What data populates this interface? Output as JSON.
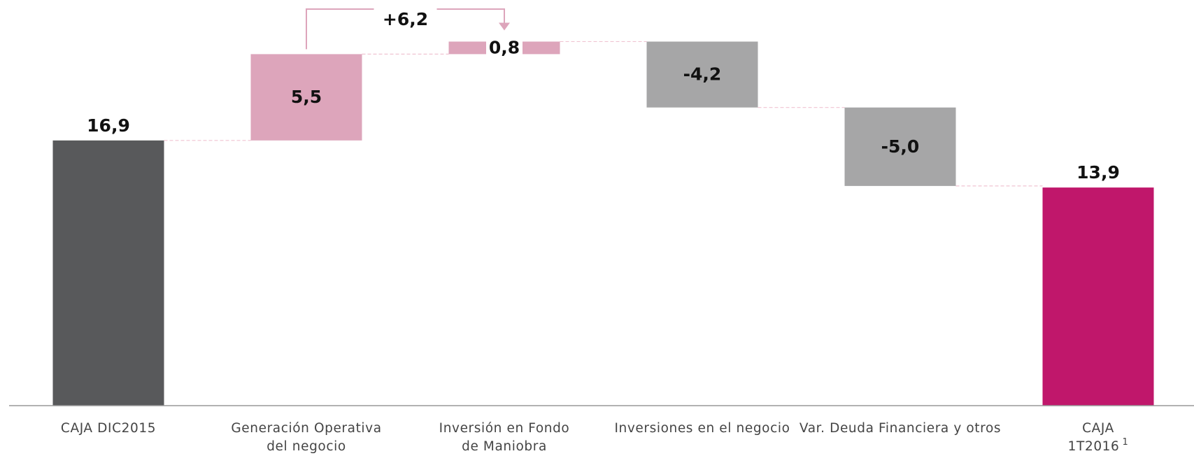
{
  "chart_data": {
    "type": "waterfall",
    "categories": [
      "CAJA DIC2015",
      "Generación Operativa\ndel negocio",
      "Inversión en Fondo\nde Maniobra",
      "Inversiones en el negocio",
      "Var. Deuda Financiera y otros",
      "CAJA\n1T2016"
    ],
    "category_superscripts": [
      null,
      null,
      null,
      null,
      null,
      "1"
    ],
    "values": [
      16.9,
      5.5,
      0.8,
      -4.2,
      -5.0,
      13.9
    ],
    "value_labels": [
      "16,9",
      "5,5",
      "0,8",
      "-4,2",
      "-5,0",
      "13,9"
    ],
    "measure": [
      "absolute",
      "relative",
      "relative",
      "relative",
      "relative",
      "absolute"
    ],
    "colors": [
      "#58595b",
      "#dda5bb",
      "#dda5bb",
      "#a6a6a7",
      "#a6a6a7",
      "#c0176b"
    ],
    "connector_color": "#f0c4d2",
    "ylim": [
      0,
      25.85
    ],
    "annotation": {
      "text": "+6,2",
      "color": "#dda5bb"
    }
  }
}
